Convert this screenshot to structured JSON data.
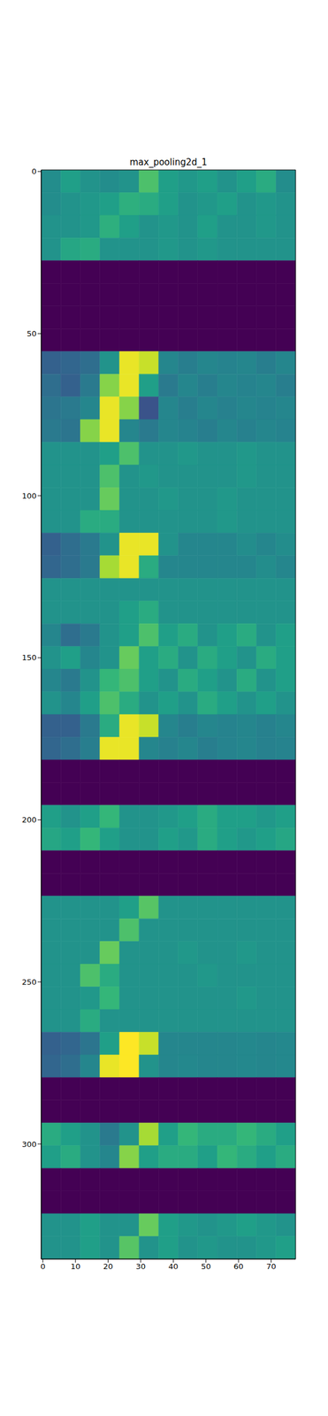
{
  "chart_data": {
    "type": "heatmap",
    "title": "max_pooling2d_1",
    "xlim": [
      -0.5,
      77.5
    ],
    "ylim": [
      -0.5,
      335.5
    ],
    "xticks": [
      0,
      10,
      20,
      30,
      40,
      50,
      60,
      70
    ],
    "yticks": [
      0,
      50,
      100,
      150,
      200,
      250,
      300
    ],
    "cells": {
      "x_edges": [
        -0.5,
        5.5,
        11.5,
        17.5,
        23.5,
        29.5,
        35.5,
        41.5,
        47.5,
        53.5,
        59.5,
        65.5,
        71.5,
        77.5
      ],
      "y_edges": [
        -0.5,
        6.5,
        13.5,
        20.5,
        27.5,
        34.5,
        41.5,
        48.5,
        55.5,
        62.5,
        69.5,
        76.5,
        83.5,
        90.5,
        97.5,
        104.5,
        111.5,
        118.5,
        125.5,
        132.5,
        139.5,
        146.5,
        153.5,
        160.5,
        167.5,
        174.5,
        181.5,
        188.5,
        195.5,
        202.5,
        209.5,
        216.5,
        223.5,
        230.5,
        237.5,
        244.5,
        251.5,
        258.5,
        265.5,
        272.5,
        279.5,
        286.5,
        293.5,
        300.5,
        307.5,
        314.5,
        321.5,
        328.5,
        335.5
      ],
      "values": [
        [
          0.48,
          0.55,
          0.5,
          0.48,
          0.5,
          0.7,
          0.55,
          0.52,
          0.55,
          0.5,
          0.55,
          0.6,
          0.48
        ],
        [
          0.48,
          0.5,
          0.52,
          0.55,
          0.62,
          0.6,
          0.55,
          0.5,
          0.52,
          0.55,
          0.5,
          0.52,
          0.5
        ],
        [
          0.5,
          0.5,
          0.52,
          0.62,
          0.55,
          0.5,
          0.52,
          0.5,
          0.55,
          0.5,
          0.5,
          0.52,
          0.5
        ],
        [
          0.5,
          0.58,
          0.6,
          0.5,
          0.5,
          0.5,
          0.52,
          0.5,
          0.52,
          0.5,
          0.5,
          0.5,
          0.5
        ],
        [
          0,
          0,
          0,
          0,
          0,
          0,
          0,
          0,
          0,
          0,
          0,
          0,
          0
        ],
        [
          0,
          0,
          0,
          0,
          0,
          0,
          0,
          0,
          0,
          0,
          0,
          0,
          0
        ],
        [
          0,
          0,
          0,
          0,
          0,
          0,
          0,
          0,
          0,
          0,
          0,
          0,
          0
        ],
        [
          0,
          0,
          0,
          0,
          0,
          0,
          0,
          0,
          0,
          0,
          0,
          0,
          0
        ],
        [
          0.3,
          0.32,
          0.35,
          0.5,
          0.95,
          0.9,
          0.45,
          0.42,
          0.45,
          0.44,
          0.45,
          0.42,
          0.45
        ],
        [
          0.35,
          0.3,
          0.4,
          0.8,
          0.95,
          0.55,
          0.4,
          0.45,
          0.42,
          0.45,
          0.44,
          0.45,
          0.42
        ],
        [
          0.38,
          0.4,
          0.45,
          0.95,
          0.8,
          0.25,
          0.45,
          0.42,
          0.45,
          0.43,
          0.45,
          0.44,
          0.45
        ],
        [
          0.4,
          0.38,
          0.8,
          0.95,
          0.45,
          0.4,
          0.45,
          0.44,
          0.42,
          0.45,
          0.43,
          0.45,
          0.44
        ],
        [
          0.5,
          0.5,
          0.5,
          0.55,
          0.7,
          0.5,
          0.5,
          0.52,
          0.5,
          0.5,
          0.52,
          0.5,
          0.5
        ],
        [
          0.5,
          0.5,
          0.5,
          0.7,
          0.5,
          0.52,
          0.5,
          0.5,
          0.5,
          0.5,
          0.52,
          0.5,
          0.5
        ],
        [
          0.5,
          0.5,
          0.5,
          0.75,
          0.5,
          0.5,
          0.52,
          0.5,
          0.5,
          0.52,
          0.5,
          0.5,
          0.5
        ],
        [
          0.5,
          0.5,
          0.6,
          0.6,
          0.5,
          0.5,
          0.5,
          0.5,
          0.5,
          0.52,
          0.5,
          0.5,
          0.5
        ],
        [
          0.3,
          0.35,
          0.4,
          0.5,
          0.95,
          0.95,
          0.5,
          0.45,
          0.45,
          0.45,
          0.48,
          0.45,
          0.48
        ],
        [
          0.32,
          0.35,
          0.4,
          0.85,
          0.95,
          0.6,
          0.45,
          0.45,
          0.45,
          0.45,
          0.45,
          0.48,
          0.45
        ],
        [
          0.5,
          0.5,
          0.5,
          0.5,
          0.5,
          0.5,
          0.5,
          0.5,
          0.5,
          0.5,
          0.5,
          0.5,
          0.5
        ],
        [
          0.5,
          0.5,
          0.5,
          0.5,
          0.55,
          0.6,
          0.5,
          0.5,
          0.5,
          0.5,
          0.5,
          0.5,
          0.5
        ],
        [
          0.45,
          0.35,
          0.4,
          0.5,
          0.55,
          0.7,
          0.55,
          0.6,
          0.5,
          0.55,
          0.6,
          0.5,
          0.55
        ],
        [
          0.5,
          0.55,
          0.45,
          0.5,
          0.75,
          0.55,
          0.6,
          0.5,
          0.6,
          0.55,
          0.5,
          0.6,
          0.55
        ],
        [
          0.45,
          0.4,
          0.5,
          0.65,
          0.7,
          0.55,
          0.5,
          0.6,
          0.55,
          0.5,
          0.6,
          0.5,
          0.55
        ],
        [
          0.5,
          0.45,
          0.55,
          0.7,
          0.6,
          0.5,
          0.55,
          0.5,
          0.6,
          0.55,
          0.5,
          0.55,
          0.5
        ],
        [
          0.3,
          0.3,
          0.4,
          0.6,
          0.95,
          0.9,
          0.45,
          0.42,
          0.45,
          0.44,
          0.45,
          0.43,
          0.45
        ],
        [
          0.32,
          0.35,
          0.42,
          0.95,
          0.95,
          0.45,
          0.43,
          0.45,
          0.42,
          0.44,
          0.45,
          0.43,
          0.44
        ],
        [
          0,
          0,
          0,
          0,
          0,
          0,
          0,
          0,
          0,
          0,
          0,
          0,
          0
        ],
        [
          0,
          0,
          0,
          0,
          0,
          0,
          0,
          0,
          0,
          0,
          0,
          0,
          0
        ],
        [
          0.55,
          0.5,
          0.55,
          0.65,
          0.5,
          0.5,
          0.52,
          0.55,
          0.6,
          0.55,
          0.55,
          0.52,
          0.55
        ],
        [
          0.58,
          0.55,
          0.65,
          0.55,
          0.5,
          0.5,
          0.55,
          0.52,
          0.6,
          0.55,
          0.52,
          0.55,
          0.58
        ],
        [
          0,
          0,
          0,
          0,
          0,
          0,
          0,
          0,
          0,
          0,
          0,
          0,
          0
        ],
        [
          0,
          0,
          0,
          0,
          0,
          0,
          0,
          0,
          0,
          0,
          0,
          0,
          0
        ],
        [
          0.5,
          0.5,
          0.5,
          0.5,
          0.55,
          0.72,
          0.5,
          0.5,
          0.5,
          0.5,
          0.5,
          0.5,
          0.5
        ],
        [
          0.5,
          0.5,
          0.5,
          0.5,
          0.7,
          0.5,
          0.5,
          0.5,
          0.5,
          0.5,
          0.5,
          0.5,
          0.5
        ],
        [
          0.5,
          0.5,
          0.5,
          0.75,
          0.5,
          0.5,
          0.5,
          0.52,
          0.5,
          0.5,
          0.52,
          0.5,
          0.5
        ],
        [
          0.5,
          0.5,
          0.7,
          0.6,
          0.5,
          0.5,
          0.5,
          0.5,
          0.52,
          0.5,
          0.5,
          0.5,
          0.5
        ],
        [
          0.5,
          0.5,
          0.52,
          0.65,
          0.5,
          0.5,
          0.5,
          0.5,
          0.5,
          0.5,
          0.52,
          0.5,
          0.5
        ],
        [
          0.5,
          0.5,
          0.6,
          0.5,
          0.5,
          0.5,
          0.5,
          0.5,
          0.5,
          0.5,
          0.5,
          0.5,
          0.5
        ],
        [
          0.3,
          0.32,
          0.38,
          0.55,
          0.98,
          0.9,
          0.45,
          0.45,
          0.45,
          0.45,
          0.46,
          0.45,
          0.46
        ],
        [
          0.32,
          0.35,
          0.45,
          0.95,
          0.98,
          0.5,
          0.45,
          0.46,
          0.45,
          0.45,
          0.46,
          0.45,
          0.46
        ],
        [
          0,
          0,
          0,
          0,
          0,
          0,
          0,
          0,
          0,
          0,
          0,
          0,
          0
        ],
        [
          0,
          0,
          0,
          0,
          0,
          0,
          0,
          0,
          0,
          0,
          0,
          0,
          0
        ],
        [
          0.6,
          0.55,
          0.5,
          0.4,
          0.5,
          0.85,
          0.55,
          0.65,
          0.6,
          0.6,
          0.65,
          0.6,
          0.55
        ],
        [
          0.55,
          0.6,
          0.5,
          0.45,
          0.8,
          0.55,
          0.6,
          0.6,
          0.55,
          0.65,
          0.6,
          0.55,
          0.6
        ],
        [
          0,
          0,
          0,
          0,
          0,
          0,
          0,
          0,
          0,
          0,
          0,
          0,
          0
        ],
        [
          0,
          0,
          0,
          0,
          0,
          0,
          0,
          0,
          0,
          0,
          0,
          0,
          0
        ],
        [
          0.5,
          0.5,
          0.55,
          0.5,
          0.5,
          0.75,
          0.55,
          0.52,
          0.5,
          0.52,
          0.55,
          0.52,
          0.5
        ],
        [
          0.5,
          0.5,
          0.55,
          0.5,
          0.72,
          0.5,
          0.55,
          0.5,
          0.52,
          0.5,
          0.5,
          0.52,
          0.55
        ]
      ]
    }
  }
}
